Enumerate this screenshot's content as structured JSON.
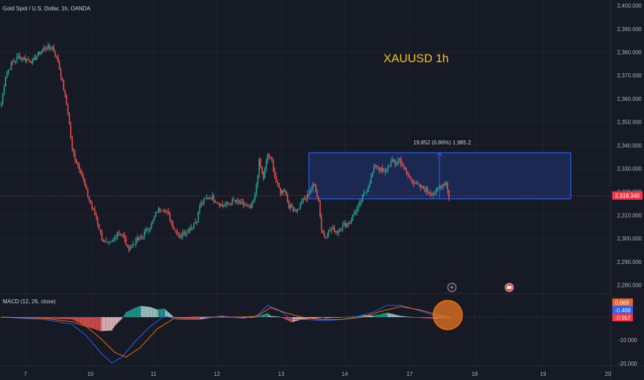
{
  "header": {
    "symbol_title": "Gold Spot / U.S. Dollar, 1h, OANDA"
  },
  "annotation": {
    "chart_label": "XAUUSD  1h",
    "measure_label": "19.852 (0.86%) 1,985.2"
  },
  "price_axis": {
    "labels": [
      "2,400.000",
      "2,390.000",
      "2,380.000",
      "2,370.000",
      "2,360.000",
      "2,350.000",
      "2,340.000",
      "2,330.000",
      "2,320.000",
      "2,310.000",
      "2,300.000",
      "2,290.000",
      "2,280.000"
    ],
    "last_price_tag": "2,318.340"
  },
  "macd": {
    "label": "MACD (12, 26, close)",
    "axis_labels": [
      "-10.000",
      "-20.000"
    ],
    "value_tags": [
      "0.069",
      "-0.488",
      "-0.557"
    ]
  },
  "time_axis": {
    "labels": [
      "7",
      "10",
      "11",
      "12",
      "13",
      "14",
      "17",
      "18",
      "19",
      "20"
    ]
  },
  "colors": {
    "background": "#161a25",
    "up": "#26a69a",
    "down": "#ef5350",
    "macd_line": "#2962ff",
    "signal_line": "#ff6d00",
    "box_fill": "#1c2b5a",
    "box_border": "#2962ff",
    "label_yellow": "#f5c518",
    "last_price": "#f23645"
  },
  "chart_data": {
    "type": "candlestick",
    "title": "Gold Spot / U.S. Dollar, 1h, OANDA",
    "ylim": [
      2275,
      2402
    ],
    "y_ticks": [
      2390,
      2380,
      2370,
      2360,
      2350,
      2340,
      2330,
      2320,
      2310,
      2300,
      2290,
      2280
    ],
    "last_price": 2318.34,
    "range_box": {
      "low": 2317,
      "high": 2336.8
    },
    "measure": {
      "from": 2317,
      "to": 2336.8,
      "change": "19.852",
      "percent": "0.86%"
    },
    "keypoints": [
      [
        0,
        2358
      ],
      [
        3,
        2370
      ],
      [
        7,
        2375
      ],
      [
        12,
        2378
      ],
      [
        17,
        2377
      ],
      [
        22,
        2376
      ],
      [
        26,
        2379
      ],
      [
        31,
        2382
      ],
      [
        36,
        2382
      ],
      [
        40,
        2376
      ],
      [
        44,
        2364
      ],
      [
        47,
        2354
      ],
      [
        50,
        2338
      ],
      [
        53,
        2333
      ],
      [
        56,
        2329
      ],
      [
        60,
        2320
      ],
      [
        64,
        2313
      ],
      [
        67,
        2309
      ],
      [
        70,
        2302
      ],
      [
        72,
        2299
      ],
      [
        75,
        2297
      ],
      [
        78,
        2298
      ],
      [
        82,
        2303
      ],
      [
        86,
        2301
      ],
      [
        89,
        2296
      ],
      [
        92,
        2297
      ],
      [
        95,
        2299
      ],
      [
        98,
        2300
      ],
      [
        102,
        2303
      ],
      [
        106,
        2306
      ],
      [
        110,
        2312
      ],
      [
        114,
        2313
      ],
      [
        118,
        2310
      ],
      [
        122,
        2304
      ],
      [
        126,
        2301
      ],
      [
        130,
        2303
      ],
      [
        134,
        2305
      ],
      [
        138,
        2308
      ],
      [
        140,
        2314
      ],
      [
        144,
        2317
      ],
      [
        148,
        2318
      ],
      [
        152,
        2316
      ],
      [
        156,
        2314
      ],
      [
        160,
        2315
      ],
      [
        164,
        2316
      ],
      [
        168,
        2315
      ],
      [
        172,
        2314
      ],
      [
        176,
        2313
      ],
      [
        179,
        2318
      ],
      [
        182,
        2333
      ],
      [
        185,
        2326
      ],
      [
        188,
        2336
      ],
      [
        191,
        2333
      ],
      [
        194,
        2324
      ],
      [
        197,
        2320
      ],
      [
        200,
        2321
      ],
      [
        203,
        2314
      ],
      [
        206,
        2313
      ],
      [
        209,
        2312
      ],
      [
        212,
        2316
      ],
      [
        215,
        2317
      ],
      [
        218,
        2321
      ],
      [
        221,
        2323
      ],
      [
        224,
        2316
      ],
      [
        226,
        2304
      ],
      [
        228,
        2301
      ],
      [
        231,
        2303
      ],
      [
        234,
        2304
      ],
      [
        237,
        2303
      ],
      [
        240,
        2305
      ],
      [
        243,
        2306
      ],
      [
        246,
        2307
      ],
      [
        249,
        2311
      ],
      [
        252,
        2313
      ],
      [
        255,
        2318
      ],
      [
        258,
        2321
      ],
      [
        261,
        2326
      ],
      [
        264,
        2332
      ],
      [
        267,
        2330
      ],
      [
        270,
        2328
      ],
      [
        273,
        2331
      ],
      [
        276,
        2333
      ],
      [
        278,
        2332
      ],
      [
        281,
        2334
      ],
      [
        284,
        2330
      ],
      [
        287,
        2327
      ],
      [
        290,
        2325
      ],
      [
        293,
        2323
      ],
      [
        296,
        2322
      ],
      [
        299,
        2321
      ],
      [
        302,
        2320
      ],
      [
        305,
        2319
      ],
      [
        308,
        2321
      ],
      [
        311,
        2323
      ],
      [
        314,
        2324
      ],
      [
        316,
        2318
      ]
    ],
    "macd": {
      "macd_line_keypoints": [
        [
          0,
          0
        ],
        [
          30,
          -1
        ],
        [
          50,
          -3
        ],
        [
          60,
          -8
        ],
        [
          70,
          -15
        ],
        [
          78,
          -19.5
        ],
        [
          85,
          -17
        ],
        [
          95,
          -10
        ],
        [
          105,
          -4
        ],
        [
          115,
          0.5
        ],
        [
          125,
          -1
        ],
        [
          140,
          -1
        ],
        [
          155,
          0.5
        ],
        [
          170,
          -0.5
        ],
        [
          180,
          0.5
        ],
        [
          188,
          5
        ],
        [
          196,
          3
        ],
        [
          205,
          -1
        ],
        [
          215,
          -1
        ],
        [
          228,
          -1.5
        ],
        [
          240,
          -1
        ],
        [
          250,
          0
        ],
        [
          262,
          2
        ],
        [
          272,
          5
        ],
        [
          282,
          5
        ],
        [
          294,
          3
        ],
        [
          304,
          1
        ],
        [
          316,
          -0.5
        ]
      ],
      "signal_line_keypoints": [
        [
          0,
          0
        ],
        [
          30,
          -0.5
        ],
        [
          50,
          -2
        ],
        [
          60,
          -4
        ],
        [
          70,
          -9
        ],
        [
          80,
          -15
        ],
        [
          88,
          -17
        ],
        [
          98,
          -13
        ],
        [
          110,
          -5
        ],
        [
          122,
          -0.5
        ],
        [
          135,
          0
        ],
        [
          150,
          0
        ],
        [
          165,
          0
        ],
        [
          180,
          0.3
        ],
        [
          190,
          4
        ],
        [
          200,
          2
        ],
        [
          212,
          0
        ],
        [
          225,
          -1
        ],
        [
          240,
          -1
        ],
        [
          255,
          0
        ],
        [
          268,
          2.5
        ],
        [
          282,
          4.5
        ],
        [
          296,
          3
        ],
        [
          308,
          1
        ],
        [
          316,
          0
        ]
      ]
    },
    "x_labels": [
      "7",
      "10",
      "11",
      "12",
      "13",
      "14",
      "17",
      "18",
      "19",
      "20"
    ]
  }
}
